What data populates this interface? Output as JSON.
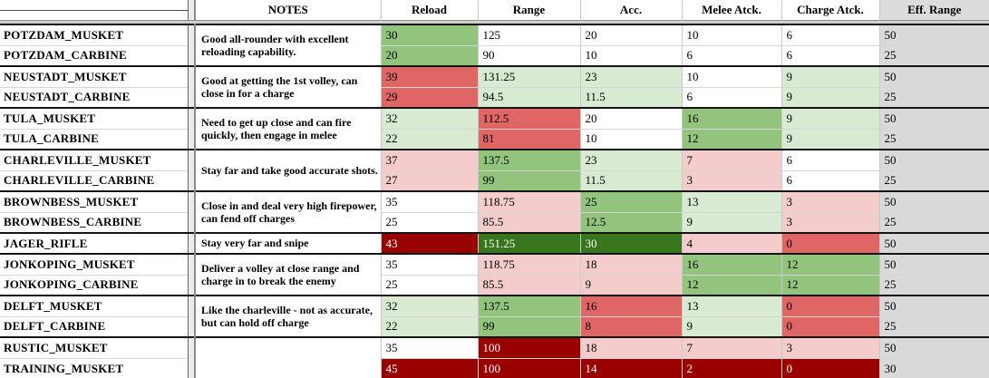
{
  "header": {
    "columns": [
      "",
      "NOTES",
      "Reload",
      "Range",
      "Acc.",
      "Melee Atck.",
      "Charge Atck.",
      "Eff. Range"
    ]
  },
  "palette": {
    "white": "#ffffff",
    "light_green": "#d9ead3",
    "medium_green": "#93c47d",
    "dark_green": "#38761d",
    "light_pink": "#f4cccc",
    "red": "#e06666",
    "dark_red": "#990000",
    "gray": "#d9d9d9"
  },
  "stat_keys": [
    "reload",
    "range",
    "acc",
    "melee",
    "charge",
    "effrange"
  ],
  "groups": [
    {
      "note": "Good all-rounder with excellent reloading capability.",
      "rows": [
        {
          "name": "POTZDAM_MUSKET",
          "cells": [
            {
              "v": "30",
              "c": "mg"
            },
            {
              "v": "125",
              "c": "w"
            },
            {
              "v": "20",
              "c": "w"
            },
            {
              "v": "10",
              "c": "w"
            },
            {
              "v": "6",
              "c": "w"
            },
            {
              "v": "50",
              "c": "gy"
            }
          ]
        },
        {
          "name": "POTZDAM_CARBINE",
          "cells": [
            {
              "v": "20",
              "c": "mg"
            },
            {
              "v": "90",
              "c": "w"
            },
            {
              "v": "10",
              "c": "w"
            },
            {
              "v": "6",
              "c": "w"
            },
            {
              "v": "6",
              "c": "w"
            },
            {
              "v": "25",
              "c": "gy"
            }
          ]
        }
      ]
    },
    {
      "note": "Good at getting the 1st volley, can close in for a charge",
      "rows": [
        {
          "name": "NEUSTADT_MUSKET",
          "cells": [
            {
              "v": "39",
              "c": "r"
            },
            {
              "v": "131.25",
              "c": "lg"
            },
            {
              "v": "23",
              "c": "lg"
            },
            {
              "v": "10",
              "c": "w"
            },
            {
              "v": "9",
              "c": "lg"
            },
            {
              "v": "50",
              "c": "gy"
            }
          ]
        },
        {
          "name": "NEUSTADT_CARBINE",
          "cells": [
            {
              "v": "29",
              "c": "r"
            },
            {
              "v": "94.5",
              "c": "lg"
            },
            {
              "v": "11.5",
              "c": "lg"
            },
            {
              "v": "6",
              "c": "w"
            },
            {
              "v": "9",
              "c": "lg"
            },
            {
              "v": "25",
              "c": "gy"
            }
          ]
        }
      ]
    },
    {
      "note": "Need to get up close and can fire quickly, then engage in melee",
      "rows": [
        {
          "name": "TULA_MUSKET",
          "cells": [
            {
              "v": "32",
              "c": "lg"
            },
            {
              "v": "112.5",
              "c": "r"
            },
            {
              "v": "20",
              "c": "w"
            },
            {
              "v": "16",
              "c": "mg"
            },
            {
              "v": "9",
              "c": "lg"
            },
            {
              "v": "50",
              "c": "gy"
            }
          ]
        },
        {
          "name": "TULA_CARBINE",
          "cells": [
            {
              "v": "22",
              "c": "lg"
            },
            {
              "v": "81",
              "c": "r"
            },
            {
              "v": "10",
              "c": "w"
            },
            {
              "v": "12",
              "c": "mg"
            },
            {
              "v": "9",
              "c": "lg"
            },
            {
              "v": "25",
              "c": "gy"
            }
          ]
        }
      ]
    },
    {
      "note": "Stay far and take good accurate shots.",
      "rows": [
        {
          "name": "CHARLEVILLE_MUSKET",
          "cells": [
            {
              "v": "37",
              "c": "lp"
            },
            {
              "v": "137.5",
              "c": "mg"
            },
            {
              "v": "23",
              "c": "lg"
            },
            {
              "v": "7",
              "c": "lp"
            },
            {
              "v": "6",
              "c": "w"
            },
            {
              "v": "50",
              "c": "gy"
            }
          ]
        },
        {
          "name": "CHARLEVILLE_CARBINE",
          "cells": [
            {
              "v": "27",
              "c": "lp"
            },
            {
              "v": "99",
              "c": "mg"
            },
            {
              "v": "11.5",
              "c": "lg"
            },
            {
              "v": "3",
              "c": "lp"
            },
            {
              "v": "6",
              "c": "w"
            },
            {
              "v": "25",
              "c": "gy"
            }
          ]
        }
      ]
    },
    {
      "note": "Close in and deal very high firepower, can fend off charges",
      "rows": [
        {
          "name": "BROWNBESS_MUSKET",
          "cells": [
            {
              "v": "35",
              "c": "w"
            },
            {
              "v": "118.75",
              "c": "lp"
            },
            {
              "v": "25",
              "c": "mg"
            },
            {
              "v": "13",
              "c": "lg"
            },
            {
              "v": "3",
              "c": "lp"
            },
            {
              "v": "50",
              "c": "gy"
            }
          ]
        },
        {
          "name": "BROWNBESS_CARBINE",
          "cells": [
            {
              "v": "25",
              "c": "w"
            },
            {
              "v": "85.5",
              "c": "lp"
            },
            {
              "v": "12.5",
              "c": "mg"
            },
            {
              "v": "9",
              "c": "lg"
            },
            {
              "v": "3",
              "c": "lp"
            },
            {
              "v": "25",
              "c": "gy"
            }
          ]
        }
      ]
    },
    {
      "note": "Stay very far and snipe",
      "rows": [
        {
          "name": "JAGER_RIFLE",
          "cells": [
            {
              "v": "43",
              "c": "dr"
            },
            {
              "v": "151.25",
              "c": "dg"
            },
            {
              "v": "30",
              "c": "dg"
            },
            {
              "v": "4",
              "c": "lp"
            },
            {
              "v": "0",
              "c": "r"
            },
            {
              "v": "50",
              "c": "gy"
            }
          ]
        }
      ]
    },
    {
      "note": "Deliver a volley at close range and charge in to break the enemy",
      "rows": [
        {
          "name": "JONKOPING_MUSKET",
          "cells": [
            {
              "v": "35",
              "c": "w"
            },
            {
              "v": "118.75",
              "c": "lp"
            },
            {
              "v": "18",
              "c": "lp"
            },
            {
              "v": "16",
              "c": "mg"
            },
            {
              "v": "12",
              "c": "mg"
            },
            {
              "v": "50",
              "c": "gy"
            }
          ]
        },
        {
          "name": "JONKOPING_CARBINE",
          "cells": [
            {
              "v": "25",
              "c": "w"
            },
            {
              "v": "85.5",
              "c": "lp"
            },
            {
              "v": "9",
              "c": "lp"
            },
            {
              "v": "12",
              "c": "mg"
            },
            {
              "v": "12",
              "c": "mg"
            },
            {
              "v": "25",
              "c": "gy"
            }
          ]
        }
      ]
    },
    {
      "note": "Like the charleville - not as accurate, but can hold off charge",
      "rows": [
        {
          "name": "DELFT_MUSKET",
          "cells": [
            {
              "v": "32",
              "c": "lg"
            },
            {
              "v": "137.5",
              "c": "mg"
            },
            {
              "v": "16",
              "c": "r"
            },
            {
              "v": "13",
              "c": "lg"
            },
            {
              "v": "0",
              "c": "r"
            },
            {
              "v": "50",
              "c": "gy"
            }
          ]
        },
        {
          "name": "DELFT_CARBINE",
          "cells": [
            {
              "v": "22",
              "c": "lg"
            },
            {
              "v": "99",
              "c": "mg"
            },
            {
              "v": "8",
              "c": "r"
            },
            {
              "v": "9",
              "c": "lg"
            },
            {
              "v": "0",
              "c": "r"
            },
            {
              "v": "25",
              "c": "gy"
            }
          ]
        }
      ]
    },
    {
      "note": "",
      "rows": [
        {
          "name": "RUSTIC_MUSKET",
          "cells": [
            {
              "v": "35",
              "c": "w"
            },
            {
              "v": "100",
              "c": "dr"
            },
            {
              "v": "18",
              "c": "lp"
            },
            {
              "v": "7",
              "c": "lp"
            },
            {
              "v": "3",
              "c": "lp"
            },
            {
              "v": "50",
              "c": "gy"
            }
          ]
        },
        {
          "name": "TRAINING_MUSKET",
          "cells": [
            {
              "v": "45",
              "c": "dr"
            },
            {
              "v": "100",
              "c": "dr"
            },
            {
              "v": "14",
              "c": "dr"
            },
            {
              "v": "2",
              "c": "dr"
            },
            {
              "v": "0",
              "c": "dr"
            },
            {
              "v": "30",
              "c": "gy"
            }
          ]
        }
      ]
    }
  ]
}
